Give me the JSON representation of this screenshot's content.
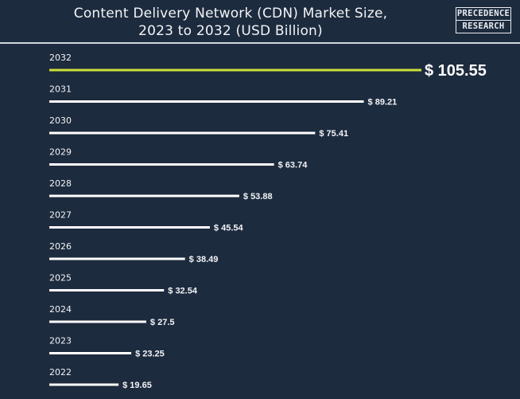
{
  "header": {
    "title_line1": "Content Delivery Network (CDN) Market Size,",
    "title_line2": "2023 to 2032 (USD Billion)",
    "logo_line1": "PRECEDENCE",
    "logo_line2": "RESEARCH"
  },
  "colors": {
    "background": "#1d2b3e",
    "bar": "#ffffff",
    "highlight": "#cde03a",
    "text": "#f2f4f7"
  },
  "chart_data": {
    "type": "bar",
    "orientation": "horizontal",
    "title": "Content Delivery Network (CDN) Market Size, 2023 to 2032 (USD Billion)",
    "categories": [
      "2032",
      "2031",
      "2030",
      "2029",
      "2028",
      "2027",
      "2026",
      "2025",
      "2024",
      "2023",
      "2022"
    ],
    "values": [
      105.55,
      89.21,
      75.41,
      63.74,
      53.88,
      45.54,
      38.49,
      32.54,
      27.5,
      23.25,
      19.65
    ],
    "labels": [
      "$ 105.55",
      "$ 89.21",
      "$ 75.41",
      "$ 63.74",
      "$ 53.88",
      "$ 45.54",
      "$ 38.49",
      "$ 32.54",
      "$ 27.5",
      "$ 23.25",
      "$ 19.65"
    ],
    "highlight_category": "2032",
    "unit": "USD Billion",
    "xlabel": "",
    "ylabel": ""
  }
}
